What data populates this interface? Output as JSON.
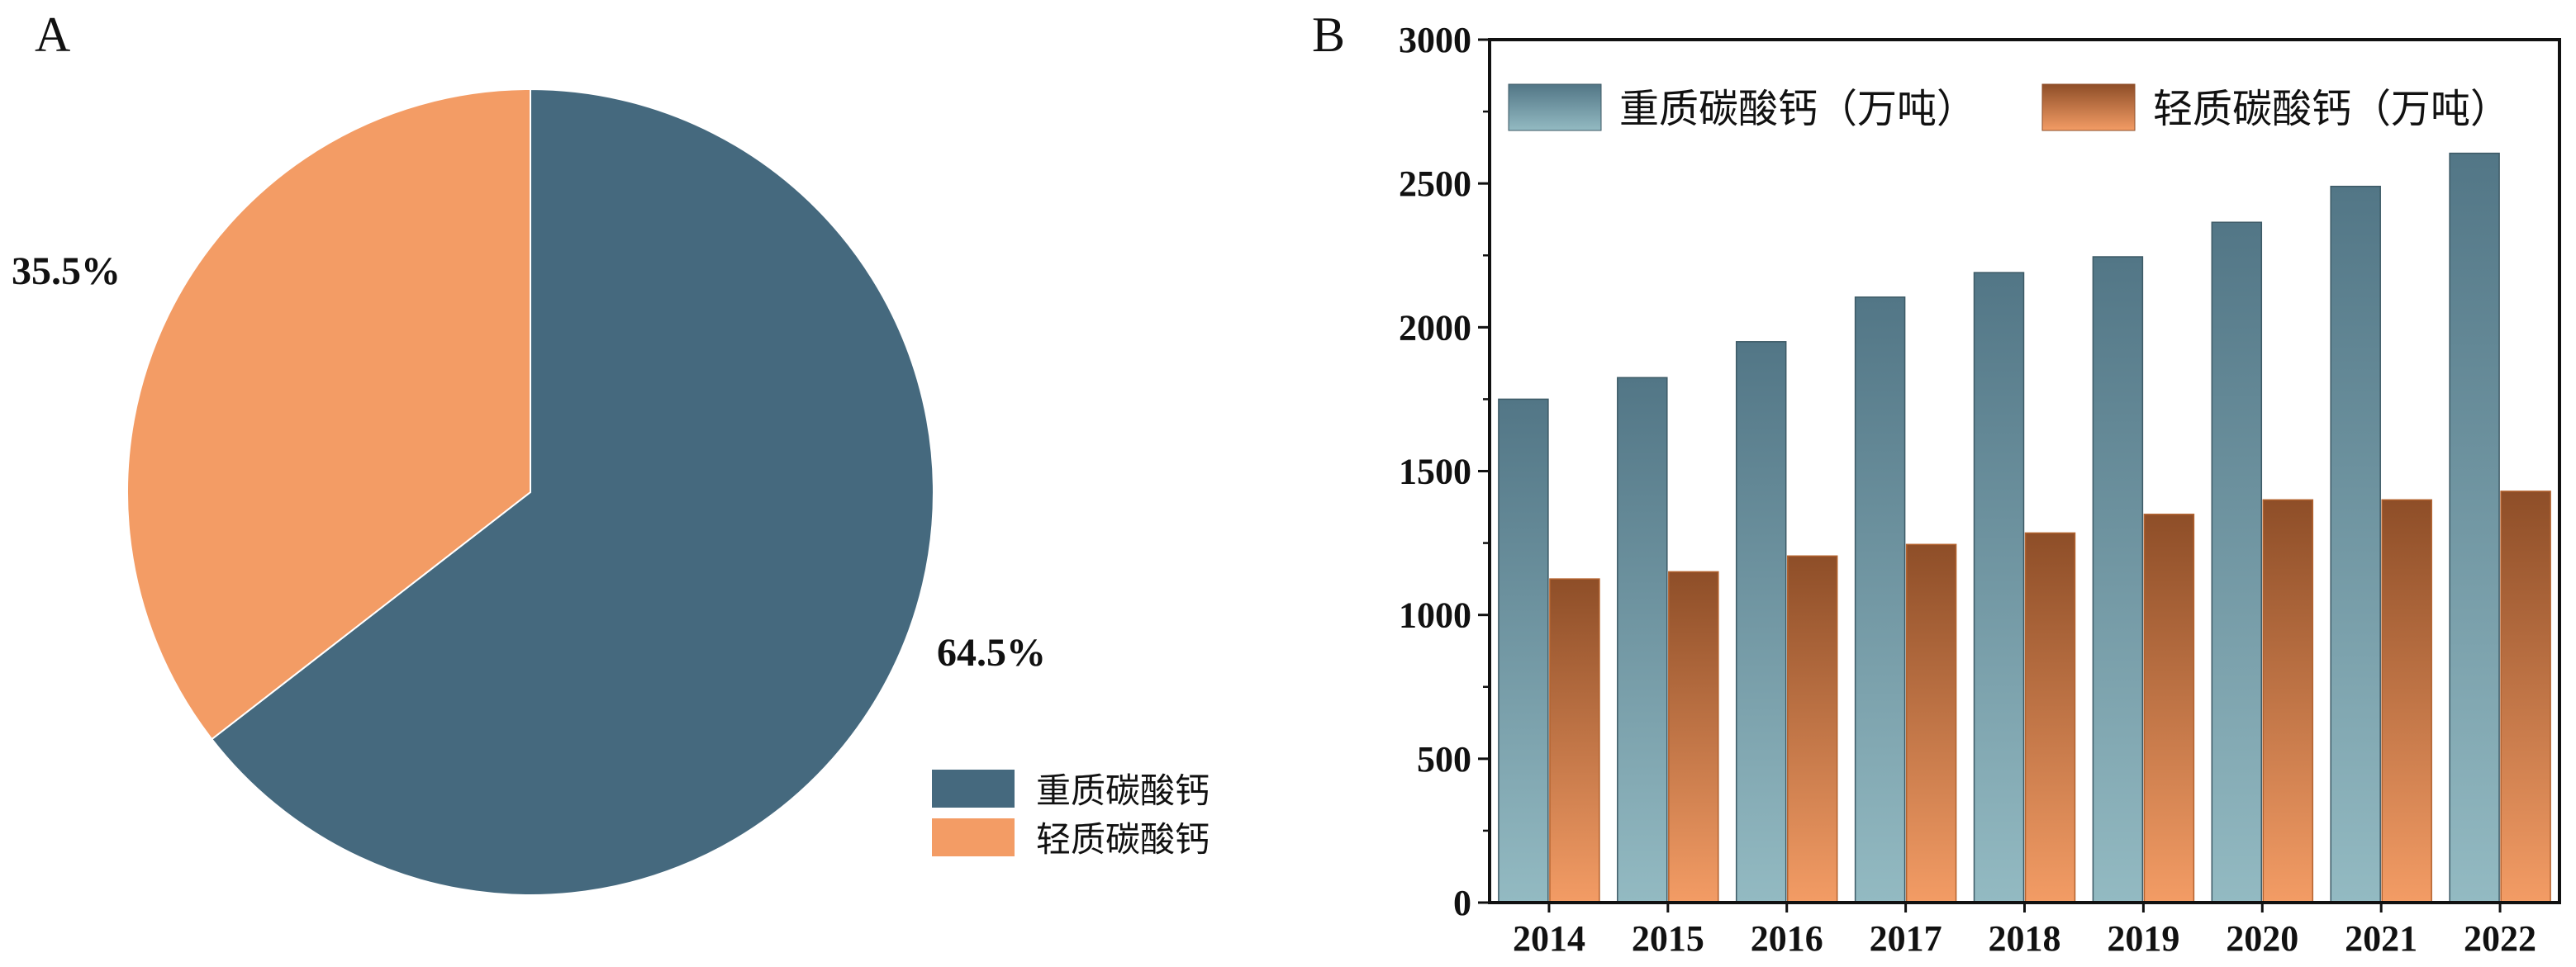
{
  "colors": {
    "pie_heavy": "#45697e",
    "pie_light": "#f39c65",
    "bar_heavy_top": "#527686",
    "bar_heavy_bottom": "#93bac2",
    "bar_light_top": "#8e4e28",
    "bar_light_bottom": "#f39c65",
    "axis": "#111111"
  },
  "chart_data": [
    {
      "type": "pie",
      "panel_label": "A",
      "slices": [
        {
          "name": "重质碳酸钙",
          "value": 64.5,
          "label": "64.5%"
        },
        {
          "name": "轻质碳酸钙",
          "value": 35.5,
          "label": "35.5%"
        }
      ],
      "legend": [
        "重质碳酸钙",
        "轻质碳酸钙"
      ],
      "legend_placement": "bottom-right"
    },
    {
      "type": "bar",
      "panel_label": "B",
      "categories": [
        "2014",
        "2015",
        "2016",
        "2017",
        "2018",
        "2019",
        "2020",
        "2021",
        "2022"
      ],
      "series": [
        {
          "name": "重质碳酸钙（万吨）",
          "values": [
            1750,
            1825,
            1950,
            2105,
            2190,
            2245,
            2365,
            2490,
            2605
          ]
        },
        {
          "name": "轻质碳酸钙（万吨）",
          "values": [
            1125,
            1150,
            1205,
            1245,
            1285,
            1350,
            1400,
            1400,
            1430
          ]
        }
      ],
      "ylim": [
        0,
        3000
      ],
      "yticks": [
        0,
        500,
        1000,
        1500,
        2000,
        2500,
        3000
      ],
      "grid": false,
      "legend_placement": "top"
    }
  ]
}
